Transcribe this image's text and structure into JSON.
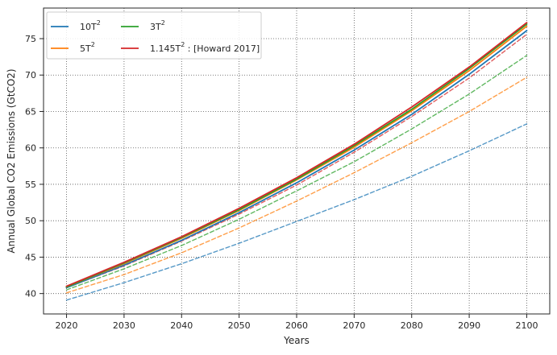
{
  "chart_data": {
    "type": "line",
    "title": "",
    "xlabel": "Years",
    "ylabel": "Annual Global CO2 Emissions (GtCO2)",
    "xlim": [
      2016,
      2104
    ],
    "ylim": [
      37.2,
      79.2
    ],
    "xticks": [
      2020,
      2030,
      2040,
      2050,
      2060,
      2070,
      2080,
      2090,
      2100
    ],
    "yticks": [
      40,
      45,
      50,
      55,
      60,
      65,
      70,
      75
    ],
    "grid": "on (dotted)",
    "legend_placement": "top-left",
    "legend": [
      {
        "base": "10T",
        "sup": "2",
        "suffix": "",
        "color": "#1f77b4"
      },
      {
        "base": "5T",
        "sup": "2",
        "suffix": "",
        "color": "#ff7f0e"
      },
      {
        "base": "3T",
        "sup": "2",
        "suffix": "",
        "color": "#2ca02c"
      },
      {
        "base": "1.145T",
        "sup": "2",
        "suffix": " : [Howard 2017]",
        "color": "#d62728"
      }
    ],
    "x": [
      2020,
      2030,
      2040,
      2050,
      2060,
      2070,
      2080,
      2090,
      2100
    ],
    "series": [
      {
        "name": "10T²",
        "style": "solid",
        "color": "#1f77b4",
        "values": [
          40.8,
          43.9,
          47.3,
          51.1,
          55.2,
          59.7,
          64.6,
          70.1,
          76.1
        ]
      },
      {
        "name": "5T²",
        "style": "solid",
        "color": "#ff7f0e",
        "values": [
          40.9,
          44.1,
          47.6,
          51.4,
          55.6,
          60.1,
          65.1,
          70.6,
          76.7
        ]
      },
      {
        "name": "3T²",
        "style": "solid",
        "color": "#2ca02c",
        "values": [
          40.9,
          44.2,
          47.7,
          51.5,
          55.7,
          60.3,
          65.3,
          70.9,
          77.0
        ]
      },
      {
        "name": "1.145T² : [Howard 2017]",
        "style": "solid",
        "color": "#d62728",
        "values": [
          41.0,
          44.3,
          47.8,
          51.7,
          55.9,
          60.5,
          65.6,
          71.1,
          77.2
        ]
      },
      {
        "style": "dashed",
        "color": "#1f77b4",
        "values": [
          39.1,
          41.5,
          44.1,
          46.9,
          49.9,
          52.9,
          56.1,
          59.6,
          63.3
        ]
      },
      {
        "style": "dashed",
        "color": "#ff7f0e",
        "values": [
          40.1,
          42.6,
          45.6,
          49.0,
          52.7,
          56.6,
          60.7,
          65.0,
          69.7
        ]
      },
      {
        "style": "dashed",
        "color": "#2ca02c",
        "values": [
          40.5,
          43.4,
          46.6,
          50.2,
          54.1,
          58.1,
          62.6,
          67.4,
          72.7
        ]
      },
      {
        "style": "dashed",
        "color": "#d62728",
        "values": [
          40.8,
          43.8,
          47.2,
          50.9,
          54.9,
          59.4,
          64.3,
          69.6,
          75.6
        ]
      }
    ]
  }
}
